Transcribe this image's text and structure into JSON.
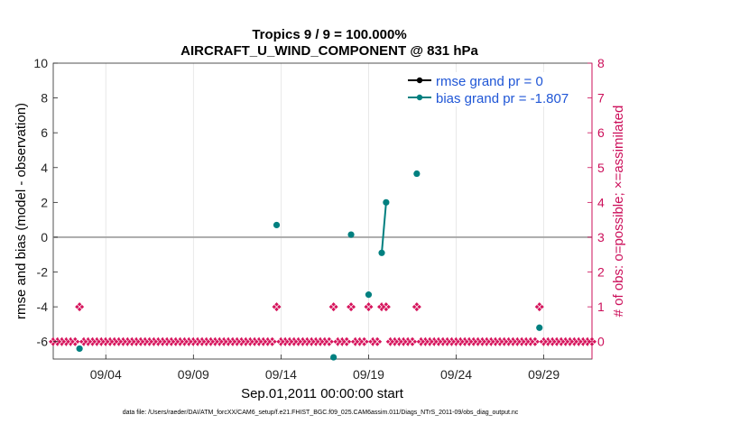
{
  "chart_data": {
    "type": "line",
    "title": "Tropics 9 / 9 = 100.000%",
    "subtitle": "AIRCRAFT_U_WIND_COMPONENT @ 831 hPa",
    "xlabel": "Sep.01,2011 00:00:00 start",
    "ylabel": "rmse and bias (model - observation)",
    "y2label": "# of obs: o=possible; ×=assimilated",
    "footer": "data file: /Users/raeder/DAI/ATM_forcXX/CAM6_setup/f.e21.FHIST_BGC.f09_025.CAM6assim.011/Diags_NTrS_2011-09/obs_diag_output.nc",
    "xlim": [
      0.0,
      30.75
    ],
    "ylim": [
      -7,
      10
    ],
    "y2lim": [
      -0.5,
      8
    ],
    "x_ticks": [
      {
        "value": 3,
        "label": "09/04"
      },
      {
        "value": 8,
        "label": "09/09"
      },
      {
        "value": 13,
        "label": "09/14"
      },
      {
        "value": 18,
        "label": "09/19"
      },
      {
        "value": 23,
        "label": "09/24"
      },
      {
        "value": 28,
        "label": "09/29"
      }
    ],
    "y_ticks": [
      {
        "value": 10,
        "label": "10"
      },
      {
        "value": 8,
        "label": "8"
      },
      {
        "value": 6,
        "label": "6"
      },
      {
        "value": 4,
        "label": "4"
      },
      {
        "value": 2,
        "label": "2"
      },
      {
        "value": 0,
        "label": "0"
      },
      {
        "value": -2,
        "label": "-2"
      },
      {
        "value": -4,
        "label": "-4"
      },
      {
        "value": -6,
        "label": "-6"
      }
    ],
    "y2_ticks": [
      {
        "value": 8,
        "label": "8"
      },
      {
        "value": 7,
        "label": "7"
      },
      {
        "value": 6,
        "label": "6"
      },
      {
        "value": 5,
        "label": "5"
      },
      {
        "value": 4,
        "label": "4"
      },
      {
        "value": 3,
        "label": "3"
      },
      {
        "value": 2,
        "label": "2"
      },
      {
        "value": 1,
        "label": "1"
      },
      {
        "value": 0,
        "label": "0"
      }
    ],
    "zero_line": 0,
    "series": [
      {
        "name": "rmse grand pr = 0",
        "color": "#000000",
        "values": []
      },
      {
        "name": "bias grand pr = -1.807",
        "color": "#008080",
        "segments": [
          [
            [
              1.5,
              -6.4
            ]
          ],
          [
            [
              12.75,
              0.7
            ]
          ],
          [
            [
              16.0,
              -6.9
            ]
          ],
          [
            [
              17.0,
              0.15
            ]
          ],
          [
            [
              18.0,
              -3.3
            ]
          ],
          [
            [
              18.75,
              -0.9
            ],
            [
              19.0,
              2.0
            ]
          ],
          [
            [
              20.75,
              3.65
            ]
          ],
          [
            [
              27.75,
              -5.2
            ]
          ]
        ]
      }
    ],
    "obs_possible_days": [
      1.5,
      12.75,
      16.0,
      17.0,
      18.0,
      18.75,
      19.0,
      20.75,
      27.75
    ],
    "obs_count_marker_color": "#d6145c"
  }
}
